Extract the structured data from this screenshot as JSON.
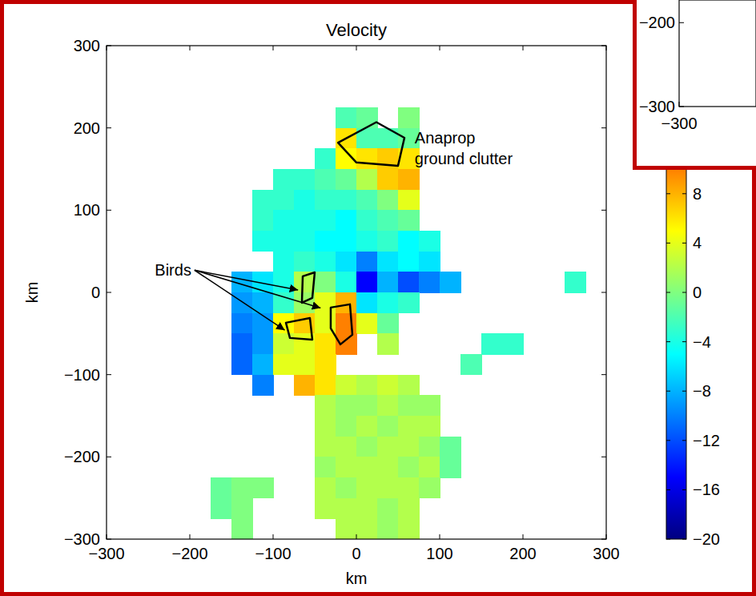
{
  "chart_data": {
    "type": "heatmap",
    "title": "Velocity",
    "x_label": "km",
    "y_label": "km",
    "xlim": [
      -300,
      300
    ],
    "ylim": [
      -300,
      300
    ],
    "xticks": [
      {
        "value": -300,
        "label": "−300"
      },
      {
        "value": -200,
        "label": "−200"
      },
      {
        "value": -100,
        "label": "−100"
      },
      0,
      100,
      200,
      300
    ],
    "yticks": [
      {
        "value": -300,
        "label": "−300"
      },
      {
        "value": -200,
        "label": "−200"
      },
      {
        "value": -100,
        "label": "−100"
      },
      0,
      100,
      200,
      300
    ],
    "x": [
      -162.5,
      -137.5,
      -112.5,
      -87.5,
      -62.5,
      -37.5,
      -12.5,
      12.5,
      37.5,
      62.5,
      87.5,
      112.5,
      137.5,
      162.5,
      187.5,
      212.5,
      237.5,
      262.5
    ],
    "y": [
      212.5,
      187.5,
      162.5,
      137.5,
      112.5,
      87.5,
      62.5,
      37.5,
      12.5,
      -12.5,
      -37.5,
      -62.5,
      -87.5,
      -112.5,
      -137.5,
      -162.5,
      -187.5,
      -212.5,
      -237.5,
      -262.5,
      -287.5
    ],
    "values": [
      [
        null,
        null,
        null,
        null,
        null,
        null,
        -2,
        -1,
        null,
        0,
        null,
        null,
        null,
        null,
        null,
        null,
        null,
        null
      ],
      [
        null,
        null,
        null,
        null,
        null,
        null,
        6,
        -2,
        -2,
        -1,
        null,
        null,
        null,
        null,
        null,
        null,
        null,
        null
      ],
      [
        null,
        null,
        null,
        null,
        null,
        -3,
        5,
        6,
        7,
        6,
        null,
        null,
        null,
        null,
        null,
        null,
        null,
        null
      ],
      [
        null,
        null,
        null,
        -3,
        -3,
        -2,
        -1,
        2,
        7,
        8,
        null,
        null,
        null,
        null,
        null,
        null,
        null,
        null
      ],
      [
        null,
        null,
        -3,
        -3,
        -4,
        -3,
        -3,
        -2,
        0,
        4,
        null,
        null,
        null,
        null,
        null,
        null,
        null,
        null
      ],
      [
        null,
        null,
        -3,
        -4,
        -4,
        -4,
        -5,
        -3,
        -2,
        -1,
        null,
        null,
        null,
        null,
        null,
        null,
        null,
        null
      ],
      [
        null,
        null,
        -4,
        -4,
        -4,
        -5,
        -5,
        -4,
        -3,
        -5,
        -4,
        null,
        null,
        null,
        null,
        null,
        null,
        null
      ],
      [
        null,
        null,
        null,
        -4,
        -3,
        -4,
        -6,
        -10,
        -6,
        -5,
        -6,
        null,
        null,
        null,
        null,
        null,
        null,
        null
      ],
      [
        null,
        -8,
        -6,
        -4,
        2,
        0,
        -4,
        -15,
        -8,
        -12,
        -10,
        -8,
        null,
        null,
        null,
        null,
        null,
        -3
      ],
      [
        null,
        -9,
        -8,
        -3,
        1,
        4,
        8,
        -6,
        -4,
        -3,
        null,
        null,
        null,
        null,
        null,
        null,
        null,
        null
      ],
      [
        null,
        -10,
        -9,
        5,
        7,
        4,
        10,
        4,
        -1,
        null,
        null,
        null,
        null,
        null,
        null,
        null,
        null,
        null
      ],
      [
        null,
        -11,
        -9,
        3,
        4,
        6,
        10,
        null,
        2,
        null,
        null,
        null,
        null,
        -3,
        -3,
        null,
        null,
        null
      ],
      [
        null,
        -11,
        -8,
        4,
        4,
        6,
        null,
        null,
        null,
        null,
        null,
        null,
        -2,
        null,
        null,
        null,
        null,
        null
      ],
      [
        null,
        null,
        -10,
        null,
        8,
        6,
        3,
        2,
        3,
        2,
        null,
        null,
        null,
        null,
        null,
        null,
        null,
        null
      ],
      [
        null,
        null,
        null,
        null,
        null,
        2,
        1,
        1,
        2,
        1,
        1,
        null,
        null,
        null,
        null,
        null,
        null,
        null
      ],
      [
        null,
        null,
        null,
        null,
        null,
        2,
        1,
        2,
        1,
        2,
        2,
        null,
        null,
        null,
        null,
        null,
        null,
        null
      ],
      [
        null,
        null,
        null,
        null,
        null,
        2,
        2,
        1,
        2,
        2,
        1,
        -1,
        null,
        null,
        null,
        null,
        null,
        null
      ],
      [
        null,
        null,
        null,
        null,
        null,
        1,
        2,
        2,
        2,
        1,
        2,
        -1,
        null,
        null,
        null,
        null,
        null,
        null
      ],
      [
        -1,
        0,
        0,
        null,
        null,
        2,
        1,
        2,
        2,
        2,
        1,
        null,
        null,
        null,
        null,
        null,
        null,
        null
      ],
      [
        -1,
        0,
        null,
        null,
        null,
        2,
        2,
        2,
        1,
        2,
        null,
        null,
        null,
        null,
        null,
        null,
        null,
        null
      ],
      [
        null,
        0,
        null,
        null,
        null,
        null,
        2,
        2,
        1,
        2,
        null,
        null,
        null,
        null,
        null,
        null,
        null,
        null
      ]
    ],
    "colorbar": {
      "range": [
        -20,
        20
      ],
      "ticks": [
        {
          "value": -20,
          "label": "−20"
        },
        {
          "value": -16,
          "label": "−16"
        },
        {
          "value": -12,
          "label": "−12"
        },
        {
          "value": -8,
          "label": "−8"
        },
        {
          "value": -4,
          "label": "−4"
        },
        0,
        4,
        8
      ]
    },
    "annotations": [
      {
        "text": "Birds",
        "xy_text": [
          -242,
          27
        ],
        "arrows": [
          [
            -70,
            3
          ],
          [
            -43,
            -19
          ],
          [
            -86,
            -46
          ]
        ],
        "regions": [
          [
            [
              -64.4,
              19.6
            ],
            [
              -50,
              24.4
            ],
            [
              -52.9,
              -6.7
            ],
            [
              -65.4,
              -12.6
            ]
          ],
          [
            [
              -84.6,
              -36.9
            ],
            [
              -55.8,
              -31.1
            ],
            [
              -52.9,
              -57.4
            ],
            [
              -79.8,
              -55.4
            ]
          ],
          [
            [
              -30.8,
              -18.4
            ],
            [
              -7.7,
              -14.5
            ],
            [
              -4.8,
              -51.5
            ],
            [
              -19.2,
              -63.2
            ],
            [
              -30.8,
              -43.7
            ]
          ]
        ]
      },
      {
        "text": "Anaprop ground clutter",
        "xy_text": [
          70,
          188
        ],
        "arrows": [],
        "regions": [
          [
            [
              -22,
              182
            ],
            [
              24,
              207
            ],
            [
              57.7,
              188
            ],
            [
              50,
              154
            ],
            [
              0,
              158
            ]
          ]
        ]
      }
    ],
    "inset": {
      "xlim": [
        -300,
        -208
      ],
      "ylim": [
        -300,
        -173
      ],
      "xticks": [
        {
          "value": -300,
          "label": "−300"
        }
      ],
      "yticks": [
        {
          "value": -300,
          "label": "−300"
        },
        {
          "value": -200,
          "label": "−200"
        }
      ]
    }
  }
}
